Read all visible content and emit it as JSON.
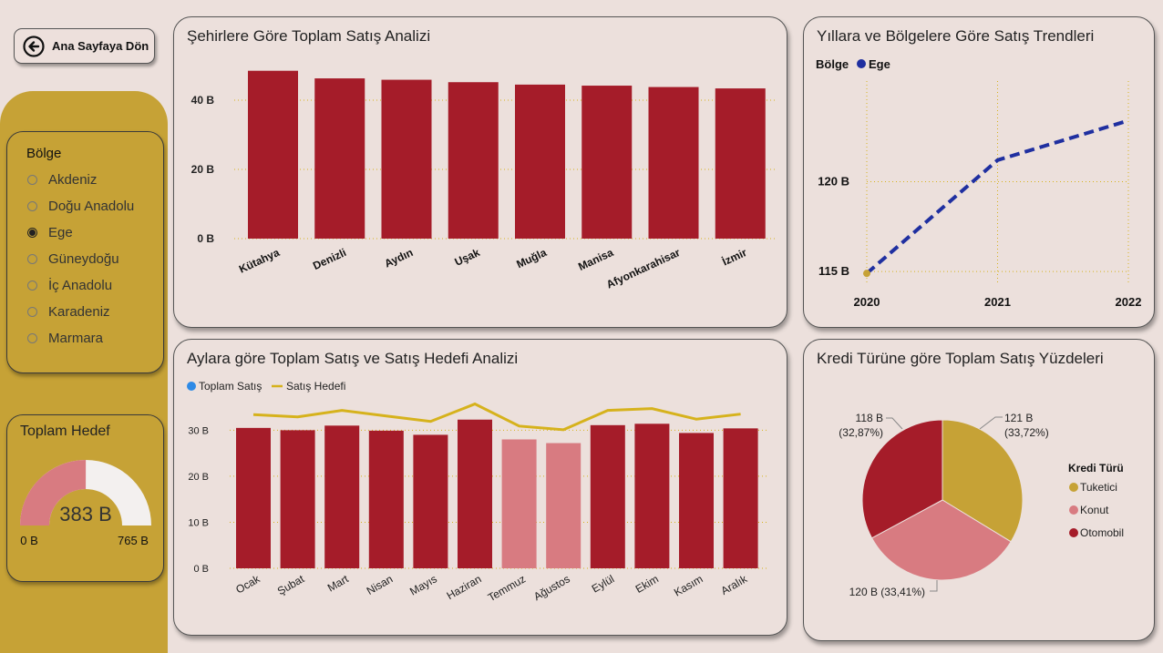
{
  "back_button": {
    "label": "Ana Sayfaya Dön"
  },
  "slicer": {
    "title": "Bölge",
    "items": [
      {
        "label": "Akdeniz",
        "selected": false
      },
      {
        "label": "Doğu Anadolu",
        "selected": false
      },
      {
        "label": "Ege",
        "selected": true
      },
      {
        "label": "Güneydoğu",
        "selected": false
      },
      {
        "label": "İç Anadolu",
        "selected": false
      },
      {
        "label": "Karadeniz",
        "selected": false
      },
      {
        "label": "Marmara",
        "selected": false
      }
    ]
  },
  "gauge": {
    "title": "Toplam Hedef",
    "value_label": "383 B",
    "min_label": "0 B",
    "max_label": "765 B",
    "value": 383,
    "min": 0,
    "max": 765
  },
  "colors": {
    "bar_dark": "#a51c29",
    "bar_light": "#d87b81",
    "gold": "#c6a236",
    "target_line": "#d6b21c",
    "trend_line": "#1f2fa0",
    "legend_blue": "#2e8ae6"
  },
  "chart_data": [
    {
      "id": "city",
      "type": "bar",
      "title": "Şehirlere Göre Toplam Satış Analizi",
      "categories": [
        "Kütahya",
        "Denizli",
        "Aydın",
        "Uşak",
        "Muğla",
        "Manisa",
        "Afyonkarahisar",
        "İzmir"
      ],
      "values": [
        48.5,
        46.3,
        45.9,
        45.2,
        44.5,
        44.2,
        43.8,
        43.4
      ],
      "yticks": [
        "0 B",
        "20 B",
        "40 B"
      ],
      "ytick_values": [
        0,
        20,
        40
      ],
      "ylim": [
        0,
        50
      ],
      "grid": true
    },
    {
      "id": "trend",
      "type": "line",
      "title": "Yıllara ve Bölgelere Göre Satış Trendleri",
      "legend_title": "Bölge",
      "series": [
        {
          "name": "Ege",
          "x": [
            "2020",
            "2021",
            "2022"
          ],
          "values": [
            114.9,
            121.2,
            123.4
          ]
        }
      ],
      "yticks": [
        "115 B",
        "120 B"
      ],
      "ytick_values": [
        115,
        120
      ],
      "ylim": [
        114.3,
        125.6
      ],
      "grid": true
    },
    {
      "id": "monthly",
      "type": "bar",
      "title": "Aylara göre Toplam Satış ve Satış Hedefi Analizi",
      "categories": [
        "Ocak",
        "Şubat",
        "Mart",
        "Nisan",
        "Mayıs",
        "Haziran",
        "Temmuz",
        "Ağustos",
        "Eylül",
        "Ekim",
        "Kasım",
        "Aralık"
      ],
      "series": [
        {
          "name": "Toplam Satış",
          "values": [
            30.5,
            30.0,
            31.0,
            29.9,
            29.0,
            32.3,
            28.0,
            27.2,
            31.1,
            31.4,
            29.4,
            30.4
          ]
        },
        {
          "name": "Satış Hedefi",
          "values": [
            33.4,
            32.9,
            34.3,
            33.1,
            31.9,
            35.7,
            30.9,
            30.1,
            34.3,
            34.7,
            32.4,
            33.5
          ]
        }
      ],
      "below_target": [
        false,
        false,
        false,
        false,
        false,
        false,
        true,
        true,
        false,
        false,
        false,
        false
      ],
      "yticks": [
        "0 B",
        "10 B",
        "20 B",
        "30 B"
      ],
      "ytick_values": [
        0,
        10,
        20,
        30
      ],
      "ylim": [
        0,
        37
      ],
      "grid": true
    },
    {
      "id": "credit",
      "type": "pie",
      "title": "Kredi Türüne göre Toplam Satış Yüzdeleri",
      "legend_title": "Kredi Türü",
      "categories": [
        "Tuketici",
        "Konut",
        "Otomobil"
      ],
      "values": [
        121,
        120,
        118
      ],
      "percents": [
        33.72,
        33.41,
        32.87
      ],
      "labels": [
        [
          "121 B",
          "(33,72%)"
        ],
        [
          "120 B (33,41%)"
        ],
        [
          "118 B",
          "(32,87%)"
        ]
      ]
    }
  ]
}
